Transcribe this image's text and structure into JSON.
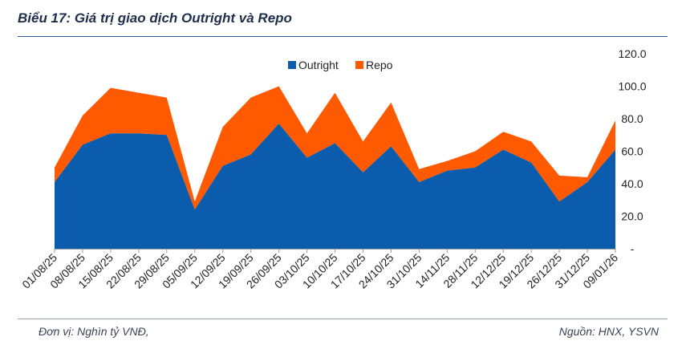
{
  "title": "Biểu 17: Giá trị giao dịch Outright và Repo",
  "footer": {
    "unit": "Đơn vị: Nghìn tỷ VNĐ,",
    "source": "Nguồn: HNX, YSVN"
  },
  "colors": {
    "outright": "#0b5cad",
    "repo": "#ff5a00",
    "title": "#1f2d4d"
  },
  "chart_data": {
    "type": "area",
    "stacked": true,
    "categories": [
      "01/08/25",
      "08/08/25",
      "15/08/25",
      "22/08/25",
      "29/08/25",
      "05/09/25",
      "12/09/25",
      "19/09/25",
      "26/09/25",
      "03/10/25",
      "10/10/25",
      "17/10/25",
      "24/10/25",
      "31/10/25",
      "14/11/25",
      "28/11/25",
      "12/12/25",
      "19/12/25",
      "26/12/25",
      "31/12/25",
      "09/01/26"
    ],
    "series": [
      {
        "name": "Outright",
        "values": [
          41,
          64,
          71,
          71,
          70,
          24,
          51,
          58,
          77,
          56,
          65,
          47,
          63,
          41,
          48,
          50,
          61,
          53,
          29,
          41,
          61
        ]
      },
      {
        "name": "Repo",
        "values": [
          9,
          18,
          28,
          25,
          23,
          5,
          24,
          35,
          23,
          15,
          31,
          19,
          27,
          8,
          6,
          10,
          11,
          13,
          16,
          3,
          18
        ]
      }
    ],
    "yaxis": {
      "position": "right",
      "ylim": [
        0,
        120
      ],
      "ticks": [
        0,
        20,
        40,
        60,
        80,
        100,
        120
      ],
      "tick_labels": [
        "-",
        "20.0",
        "40.0",
        "60.0",
        "80.0",
        "100.0",
        "120.0"
      ]
    },
    "legend": {
      "position": "top-center",
      "entries": [
        "Outright",
        "Repo"
      ]
    },
    "grid": false
  }
}
